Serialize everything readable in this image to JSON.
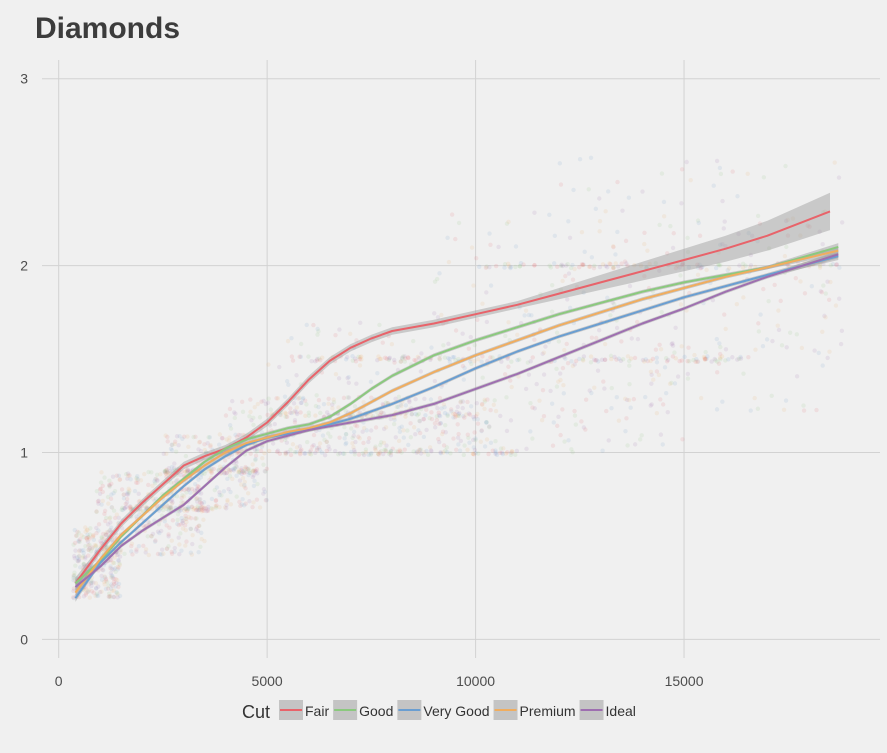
{
  "chart_data": {
    "type": "scatter",
    "title": "Diamonds",
    "xlabel": "",
    "ylabel": "",
    "xlim": [
      -400,
      19700
    ],
    "ylim": [
      -0.1,
      3.1
    ],
    "x_ticks": [
      0,
      5000,
      10000,
      15000
    ],
    "y_ticks": [
      0,
      1,
      2,
      3
    ],
    "grid": true,
    "legend": {
      "title": "Cut",
      "position": "bottom"
    },
    "series": [
      {
        "name": "Fair",
        "color": "#e8636a",
        "smooth": [
          [
            400,
            0.3
          ],
          [
            1000,
            0.48
          ],
          [
            1500,
            0.62
          ],
          [
            2000,
            0.73
          ],
          [
            2500,
            0.83
          ],
          [
            3000,
            0.93
          ],
          [
            3500,
            0.98
          ],
          [
            4000,
            1.02
          ],
          [
            4500,
            1.08
          ],
          [
            5000,
            1.16
          ],
          [
            5500,
            1.27
          ],
          [
            6000,
            1.39
          ],
          [
            6500,
            1.49
          ],
          [
            7000,
            1.56
          ],
          [
            7500,
            1.61
          ],
          [
            8000,
            1.65
          ],
          [
            9000,
            1.69
          ],
          [
            10000,
            1.74
          ],
          [
            11000,
            1.79
          ],
          [
            12000,
            1.85
          ],
          [
            13000,
            1.91
          ],
          [
            14000,
            1.97
          ],
          [
            15000,
            2.03
          ],
          [
            16000,
            2.09
          ],
          [
            17000,
            2.16
          ],
          [
            18500,
            2.29
          ]
        ],
        "band_halfwidth": [
          0.03,
          0.02,
          0.02,
          0.02,
          0.02,
          0.02,
          0.02,
          0.02,
          0.02,
          0.02,
          0.02,
          0.02,
          0.02,
          0.02,
          0.02,
          0.02,
          0.02,
          0.02,
          0.02,
          0.03,
          0.04,
          0.05,
          0.06,
          0.07,
          0.08,
          0.1
        ]
      },
      {
        "name": "Good",
        "color": "#8bc97e",
        "smooth": [
          [
            400,
            0.3
          ],
          [
            1000,
            0.42
          ],
          [
            1500,
            0.55
          ],
          [
            2000,
            0.66
          ],
          [
            2500,
            0.77
          ],
          [
            3000,
            0.86
          ],
          [
            3500,
            0.95
          ],
          [
            4000,
            1.02
          ],
          [
            4500,
            1.07
          ],
          [
            5000,
            1.1
          ],
          [
            5500,
            1.13
          ],
          [
            6000,
            1.15
          ],
          [
            6500,
            1.19
          ],
          [
            7000,
            1.26
          ],
          [
            7500,
            1.34
          ],
          [
            8000,
            1.41
          ],
          [
            9000,
            1.52
          ],
          [
            10000,
            1.6
          ],
          [
            11000,
            1.67
          ],
          [
            12000,
            1.74
          ],
          [
            13000,
            1.8
          ],
          [
            14000,
            1.86
          ],
          [
            15000,
            1.91
          ],
          [
            16000,
            1.95
          ],
          [
            17000,
            1.99
          ],
          [
            18700,
            2.1
          ]
        ],
        "band_halfwidth": [
          0.02,
          0.01,
          0.01,
          0.01,
          0.01,
          0.01,
          0.01,
          0.01,
          0.01,
          0.01,
          0.01,
          0.01,
          0.01,
          0.01,
          0.01,
          0.01,
          0.01,
          0.01,
          0.01,
          0.01,
          0.01,
          0.01,
          0.01,
          0.01,
          0.01,
          0.02
        ]
      },
      {
        "name": "Very Good",
        "color": "#6a9ed1",
        "smooth": [
          [
            400,
            0.22
          ],
          [
            1000,
            0.41
          ],
          [
            1500,
            0.52
          ],
          [
            2000,
            0.62
          ],
          [
            2500,
            0.72
          ],
          [
            3000,
            0.82
          ],
          [
            3500,
            0.91
          ],
          [
            4000,
            0.98
          ],
          [
            4500,
            1.04
          ],
          [
            5000,
            1.08
          ],
          [
            5500,
            1.1
          ],
          [
            6000,
            1.12
          ],
          [
            6500,
            1.15
          ],
          [
            7000,
            1.18
          ],
          [
            7500,
            1.22
          ],
          [
            8000,
            1.26
          ],
          [
            9000,
            1.35
          ],
          [
            10000,
            1.45
          ],
          [
            11000,
            1.54
          ],
          [
            12000,
            1.62
          ],
          [
            13000,
            1.69
          ],
          [
            14000,
            1.76
          ],
          [
            15000,
            1.83
          ],
          [
            16000,
            1.89
          ],
          [
            17000,
            1.95
          ],
          [
            18700,
            2.05
          ]
        ],
        "band_halfwidth": [
          0.02,
          0.01,
          0.01,
          0.01,
          0.01,
          0.01,
          0.01,
          0.01,
          0.01,
          0.01,
          0.01,
          0.01,
          0.01,
          0.01,
          0.01,
          0.01,
          0.01,
          0.01,
          0.01,
          0.01,
          0.01,
          0.01,
          0.01,
          0.01,
          0.01,
          0.02
        ]
      },
      {
        "name": "Premium",
        "color": "#f0ad5f",
        "smooth": [
          [
            400,
            0.25
          ],
          [
            1000,
            0.43
          ],
          [
            1500,
            0.56
          ],
          [
            2000,
            0.66
          ],
          [
            2500,
            0.76
          ],
          [
            3000,
            0.85
          ],
          [
            3500,
            0.93
          ],
          [
            4000,
            1.0
          ],
          [
            4500,
            1.05
          ],
          [
            5000,
            1.08
          ],
          [
            5500,
            1.11
          ],
          [
            6000,
            1.13
          ],
          [
            6500,
            1.16
          ],
          [
            7000,
            1.21
          ],
          [
            7500,
            1.27
          ],
          [
            8000,
            1.33
          ],
          [
            9000,
            1.43
          ],
          [
            10000,
            1.52
          ],
          [
            11000,
            1.6
          ],
          [
            12000,
            1.68
          ],
          [
            13000,
            1.75
          ],
          [
            14000,
            1.82
          ],
          [
            15000,
            1.88
          ],
          [
            16000,
            1.94
          ],
          [
            17000,
            1.99
          ],
          [
            18700,
            2.08
          ]
        ],
        "band_halfwidth": [
          0.02,
          0.01,
          0.01,
          0.01,
          0.01,
          0.01,
          0.01,
          0.01,
          0.01,
          0.01,
          0.01,
          0.01,
          0.01,
          0.01,
          0.01,
          0.01,
          0.01,
          0.01,
          0.01,
          0.01,
          0.01,
          0.01,
          0.01,
          0.01,
          0.01,
          0.02
        ]
      },
      {
        "name": "Ideal",
        "color": "#9e6fb0",
        "smooth": [
          [
            400,
            0.28
          ],
          [
            1000,
            0.39
          ],
          [
            1500,
            0.5
          ],
          [
            2000,
            0.58
          ],
          [
            2500,
            0.65
          ],
          [
            3000,
            0.72
          ],
          [
            3500,
            0.82
          ],
          [
            4000,
            0.92
          ],
          [
            4500,
            1.01
          ],
          [
            5000,
            1.06
          ],
          [
            5500,
            1.09
          ],
          [
            6000,
            1.12
          ],
          [
            6500,
            1.14
          ],
          [
            7000,
            1.16
          ],
          [
            7500,
            1.18
          ],
          [
            8000,
            1.2
          ],
          [
            9000,
            1.26
          ],
          [
            10000,
            1.34
          ],
          [
            11000,
            1.42
          ],
          [
            12000,
            1.51
          ],
          [
            13000,
            1.6
          ],
          [
            14000,
            1.69
          ],
          [
            15000,
            1.77
          ],
          [
            16000,
            1.86
          ],
          [
            17000,
            1.94
          ],
          [
            18700,
            2.06
          ]
        ],
        "band_halfwidth": [
          0.02,
          0.01,
          0.01,
          0.01,
          0.01,
          0.01,
          0.01,
          0.01,
          0.01,
          0.01,
          0.01,
          0.01,
          0.01,
          0.01,
          0.01,
          0.01,
          0.01,
          0.01,
          0.01,
          0.01,
          0.01,
          0.01,
          0.01,
          0.01,
          0.01,
          0.02
        ]
      }
    ],
    "scatter_clusters": [
      {
        "x": [
          350,
          1500
        ],
        "y": [
          0.22,
          0.6
        ],
        "n": 300
      },
      {
        "x": [
          900,
          3500
        ],
        "y": [
          0.45,
          0.9
        ],
        "n": 300
      },
      {
        "x": [
          2500,
          5000
        ],
        "y": [
          0.7,
          1.1
        ],
        "n": 220
      },
      {
        "x": [
          4000,
          10500
        ],
        "y": [
          1.0,
          1.3
        ],
        "n": 260
      },
      {
        "x": [
          5000,
          15000
        ],
        "y": [
          1.0,
          1.7
        ],
        "n": 220
      },
      {
        "x": [
          9000,
          18800
        ],
        "y": [
          1.2,
          2.3
        ],
        "n": 200
      },
      {
        "x": [
          12000,
          18800
        ],
        "y": [
          1.5,
          2.6
        ],
        "n": 120
      }
    ],
    "scatter_bands": [
      {
        "y": 0.7,
        "x": [
          1500,
          3800
        ],
        "n": 80
      },
      {
        "y": 0.9,
        "x": [
          2500,
          4800
        ],
        "n": 80
      },
      {
        "y": 1.0,
        "x": [
          3500,
          11000
        ],
        "n": 130
      },
      {
        "y": 1.2,
        "x": [
          5000,
          10000
        ],
        "n": 80
      },
      {
        "y": 1.5,
        "x": [
          5500,
          16500
        ],
        "n": 150
      },
      {
        "y": 2.0,
        "x": [
          10000,
          18800
        ],
        "n": 90
      }
    ]
  }
}
